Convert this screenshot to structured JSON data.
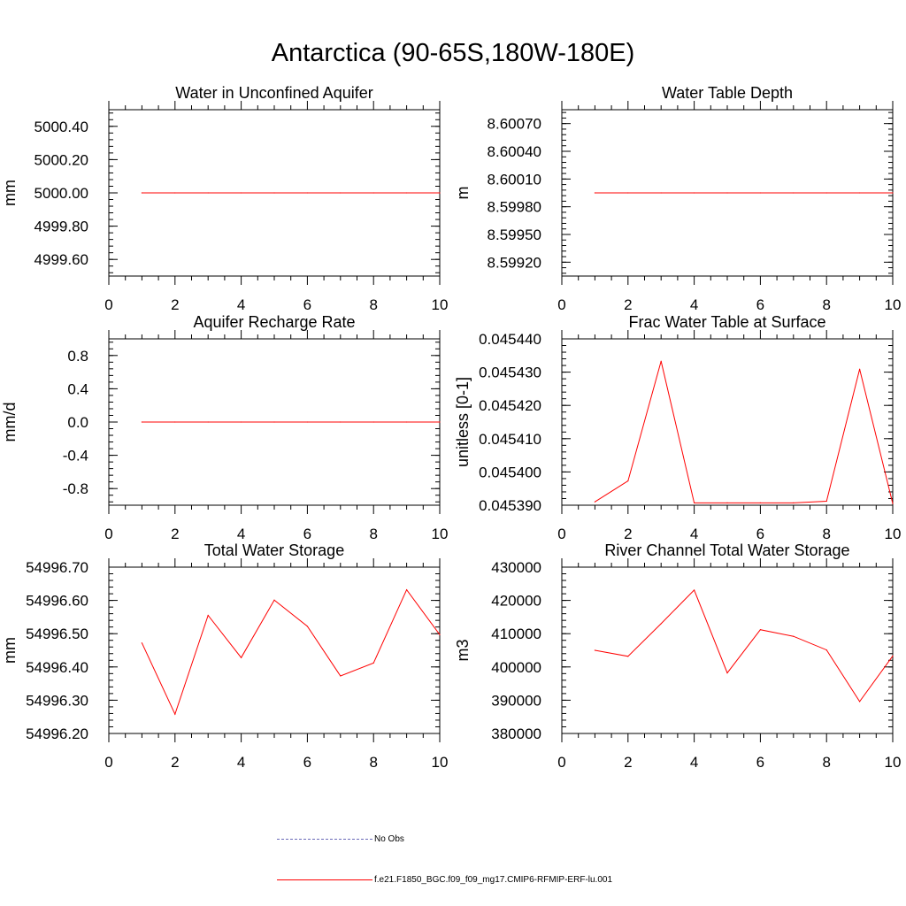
{
  "title": "Antarctica (90-65S,180W-180E)",
  "line_color": "#ff0000",
  "obs_color": "#6a6ab8",
  "legend": {
    "obs_label": "No Obs",
    "model_label": "f.e21.F1850_BGC.f09_f09_mg17.CMIP6-RFMIP-ERF-lu.001"
  },
  "chart_data": [
    {
      "type": "line",
      "title": "Water in Unconfined Aquifer",
      "ylabel": "mm",
      "xlim": [
        0,
        10
      ],
      "ylim": [
        4999.5,
        5000.5
      ],
      "yticks": [
        4999.6,
        4999.8,
        5000.0,
        5000.2,
        5000.4
      ],
      "ytick_labels": [
        "4999.60",
        "4999.80",
        "5000.00",
        "5000.20",
        "5000.40"
      ],
      "x": [
        1,
        2,
        3,
        4,
        5,
        6,
        7,
        8,
        9,
        10
      ],
      "series": [
        {
          "values": [
            5000,
            5000,
            5000,
            5000,
            5000,
            5000,
            5000,
            5000,
            5000,
            5000
          ]
        }
      ]
    },
    {
      "type": "line",
      "title": "Water Table Depth",
      "ylabel": "m",
      "xlim": [
        0,
        10
      ],
      "ylim": [
        8.59905,
        8.60085
      ],
      "yticks": [
        8.5992,
        8.5995,
        8.5998,
        8.6001,
        8.6004,
        8.6007
      ],
      "ytick_labels": [
        "8.59920",
        "8.59950",
        "8.59980",
        "8.60010",
        "8.60040",
        "8.60070"
      ],
      "x": [
        1,
        2,
        3,
        4,
        5,
        6,
        7,
        8,
        9,
        10
      ],
      "series": [
        {
          "values": [
            8.59995,
            8.59995,
            8.59995,
            8.59995,
            8.59995,
            8.59995,
            8.59995,
            8.59995,
            8.59995,
            8.59995
          ]
        }
      ]
    },
    {
      "type": "line",
      "title": "Aquifer Recharge Rate",
      "ylabel": "mm/d",
      "xlim": [
        0,
        10
      ],
      "ylim": [
        -1.0,
        1.0
      ],
      "yticks": [
        -0.8,
        -0.4,
        0.0,
        0.4,
        0.8
      ],
      "ytick_labels": [
        "-0.8",
        "-0.4",
        "0.0",
        "0.4",
        "0.8"
      ],
      "x": [
        1,
        2,
        3,
        4,
        5,
        6,
        7,
        8,
        9,
        10
      ],
      "series": [
        {
          "values": [
            0,
            0,
            0,
            0,
            0,
            0,
            0,
            0,
            0,
            0
          ]
        }
      ]
    },
    {
      "type": "line",
      "title": "Frac Water Table at Surface",
      "ylabel": "unitless [0-1]",
      "xlim": [
        0,
        10
      ],
      "ylim": [
        0.04539,
        0.04544
      ],
      "yticks": [
        0.04539,
        0.0454,
        0.04541,
        0.04542,
        0.04543,
        0.04544
      ],
      "ytick_labels": [
        "0.045390",
        "0.045400",
        "0.045410",
        "0.045420",
        "0.045430",
        "0.045440"
      ],
      "x": [
        1,
        2,
        3,
        4,
        5,
        6,
        7,
        8,
        9,
        10
      ],
      "series": [
        {
          "values": [
            0.045391,
            0.0453973,
            0.0454333,
            0.0453907,
            0.0453907,
            0.0453907,
            0.0453907,
            0.0453912,
            0.0454309,
            0.0453905
          ]
        }
      ]
    },
    {
      "type": "line",
      "title": "Total Water Storage",
      "ylabel": "mm",
      "xlim": [
        0,
        10
      ],
      "ylim": [
        54996.2,
        54996.7
      ],
      "yticks": [
        54996.2,
        54996.3,
        54996.4,
        54996.5,
        54996.6,
        54996.7
      ],
      "ytick_labels": [
        "54996.20",
        "54996.30",
        "54996.40",
        "54996.50",
        "54996.60",
        "54996.70"
      ],
      "x": [
        1,
        2,
        3,
        4,
        5,
        6,
        7,
        8,
        9,
        10
      ],
      "series": [
        {
          "values": [
            54996.472,
            54996.258,
            54996.555,
            54996.428,
            54996.601,
            54996.522,
            54996.373,
            54996.412,
            54996.632,
            54996.497
          ]
        }
      ]
    },
    {
      "type": "line",
      "title": "River Channel Total Water Storage",
      "ylabel": "m3",
      "xlim": [
        0,
        10
      ],
      "ylim": [
        380000,
        430000
      ],
      "yticks": [
        380000,
        390000,
        400000,
        410000,
        420000,
        430000
      ],
      "ytick_labels": [
        "380000",
        "390000",
        "400000",
        "410000",
        "420000",
        "430000"
      ],
      "x": [
        1,
        2,
        3,
        4,
        5,
        6,
        7,
        8,
        9,
        10
      ],
      "series": [
        {
          "values": [
            405000,
            403200,
            413000,
            423100,
            398200,
            411200,
            409200,
            405100,
            389600,
            403300
          ]
        }
      ]
    }
  ]
}
